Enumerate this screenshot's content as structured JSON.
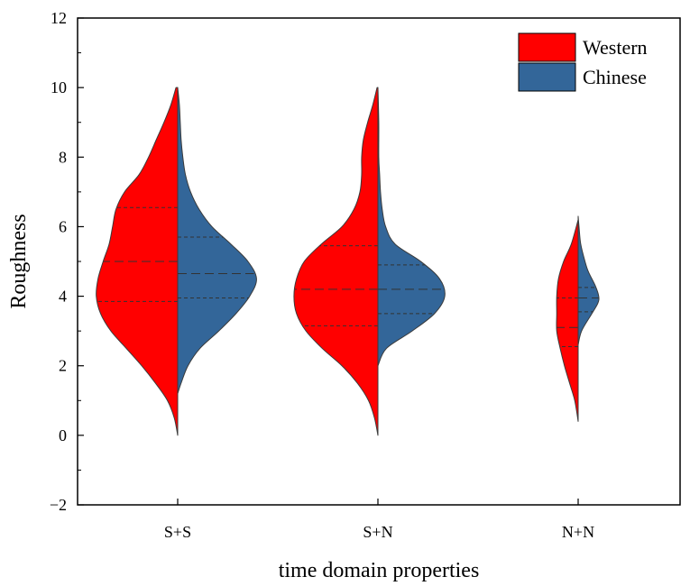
{
  "chart_data": {
    "type": "violin",
    "xlabel": "time domain properties",
    "ylabel": "Roughness",
    "ylim": [
      -2,
      12
    ],
    "yticks": [
      -2,
      0,
      2,
      4,
      6,
      8,
      10,
      12
    ],
    "categories": [
      "S+S",
      "S+N",
      "N+N"
    ],
    "grid": false,
    "legend_position": "top-right",
    "series": [
      {
        "name": "Western",
        "color": "#ff0000",
        "side": "left",
        "violins": [
          {
            "category": "S+S",
            "range": [
              0,
              10
            ],
            "quartiles": [
              3.85,
              5.0,
              6.55
            ],
            "profile": [
              [
                0,
                0
              ],
              [
                0.5,
                0.04
              ],
              [
                1,
                0.12
              ],
              [
                1.5,
                0.26
              ],
              [
                2,
                0.42
              ],
              [
                2.5,
                0.6
              ],
              [
                3,
                0.78
              ],
              [
                3.5,
                0.9
              ],
              [
                4,
                0.95
              ],
              [
                4.5,
                0.93
              ],
              [
                5,
                0.87
              ],
              [
                5.5,
                0.8
              ],
              [
                6,
                0.76
              ],
              [
                6.5,
                0.72
              ],
              [
                7,
                0.62
              ],
              [
                7.5,
                0.45
              ],
              [
                8,
                0.34
              ],
              [
                8.5,
                0.25
              ],
              [
                9,
                0.16
              ],
              [
                9.5,
                0.08
              ],
              [
                10,
                0.02
              ]
            ]
          },
          {
            "category": "S+N",
            "range": [
              0,
              10
            ],
            "quartiles": [
              3.15,
              4.2,
              5.45
            ],
            "profile": [
              [
                0,
                0
              ],
              [
                0.5,
                0.04
              ],
              [
                1,
                0.11
              ],
              [
                1.5,
                0.24
              ],
              [
                2,
                0.42
              ],
              [
                2.5,
                0.65
              ],
              [
                3,
                0.84
              ],
              [
                3.5,
                0.95
              ],
              [
                4,
                0.98
              ],
              [
                4.5,
                0.95
              ],
              [
                5,
                0.86
              ],
              [
                5.5,
                0.66
              ],
              [
                6,
                0.42
              ],
              [
                6.5,
                0.28
              ],
              [
                7,
                0.21
              ],
              [
                7.5,
                0.19
              ],
              [
                8,
                0.19
              ],
              [
                8.5,
                0.17
              ],
              [
                9,
                0.12
              ],
              [
                9.5,
                0.06
              ],
              [
                10,
                0.01
              ]
            ]
          },
          {
            "category": "N+N",
            "range": [
              0.4,
              6.2
            ],
            "quartiles": [
              2.55,
              3.1,
              3.95
            ],
            "profile": [
              [
                0.4,
                0
              ],
              [
                1,
                0.04
              ],
              [
                1.5,
                0.1
              ],
              [
                2,
                0.16
              ],
              [
                2.5,
                0.21
              ],
              [
                3,
                0.25
              ],
              [
                3.5,
                0.25
              ],
              [
                4,
                0.25
              ],
              [
                4.5,
                0.23
              ],
              [
                5,
                0.17
              ],
              [
                5.5,
                0.08
              ],
              [
                6.2,
                0
              ]
            ]
          }
        ]
      },
      {
        "name": "Chinese",
        "color": "#336699",
        "side": "right",
        "violins": [
          {
            "category": "S+S",
            "range": [
              1.2,
              10
            ],
            "quartiles": [
              3.95,
              4.65,
              5.7
            ],
            "profile": [
              [
                1.2,
                0
              ],
              [
                1.5,
                0.04
              ],
              [
                2,
                0.12
              ],
              [
                2.5,
                0.26
              ],
              [
                3,
                0.48
              ],
              [
                3.5,
                0.68
              ],
              [
                4,
                0.84
              ],
              [
                4.5,
                0.92
              ],
              [
                5,
                0.82
              ],
              [
                5.5,
                0.62
              ],
              [
                6,
                0.4
              ],
              [
                6.5,
                0.25
              ],
              [
                7,
                0.15
              ],
              [
                7.5,
                0.09
              ],
              [
                8,
                0.06
              ],
              [
                8.5,
                0.04
              ],
              [
                9,
                0.03
              ],
              [
                9.5,
                0.02
              ],
              [
                10,
                0
              ]
            ]
          },
          {
            "category": "S+N",
            "range": [
              2,
              10
            ],
            "quartiles": [
              3.5,
              4.2,
              4.9
            ],
            "profile": [
              [
                2,
                0
              ],
              [
                2.5,
                0.1
              ],
              [
                3,
                0.4
              ],
              [
                3.5,
                0.66
              ],
              [
                4,
                0.78
              ],
              [
                4.5,
                0.72
              ],
              [
                5,
                0.5
              ],
              [
                5.5,
                0.2
              ],
              [
                6,
                0.09
              ],
              [
                6.5,
                0.05
              ],
              [
                7,
                0.03
              ],
              [
                7.5,
                0.02
              ],
              [
                8,
                0.01
              ],
              [
                9,
                0.01
              ],
              [
                10,
                0
              ]
            ]
          },
          {
            "category": "N+N",
            "range": [
              2.6,
              6.3
            ],
            "quartiles": [
              3.55,
              3.95,
              4.25
            ],
            "profile": [
              [
                2.6,
                0
              ],
              [
                3,
                0.04
              ],
              [
                3.5,
                0.16
              ],
              [
                3.8,
                0.23
              ],
              [
                4,
                0.24
              ],
              [
                4.3,
                0.2
              ],
              [
                4.7,
                0.12
              ],
              [
                5,
                0.08
              ],
              [
                5.5,
                0.03
              ],
              [
                6,
                0.01
              ],
              [
                6.3,
                0
              ]
            ]
          }
        ]
      }
    ]
  }
}
